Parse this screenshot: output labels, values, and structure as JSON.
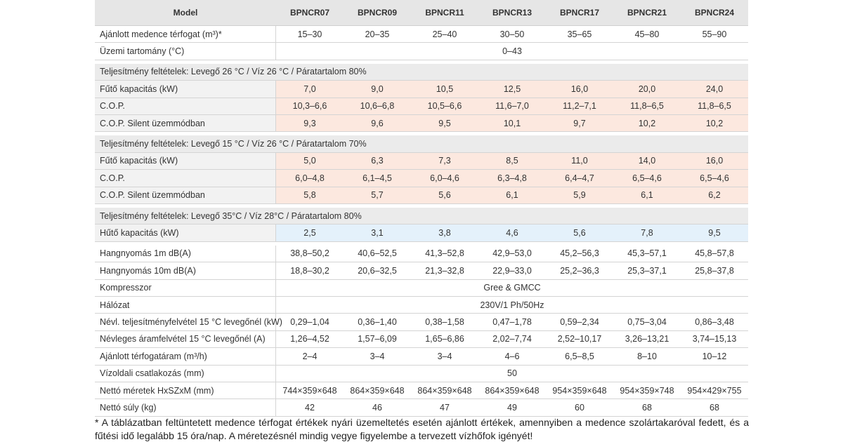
{
  "table": {
    "header": [
      "Model",
      "BPNCR07",
      "BPNCR09",
      "BPNCR11",
      "BPNCR13",
      "BPNCR17",
      "BPNCR21",
      "BPNCR24"
    ],
    "groups": [
      {
        "rows": [
          {
            "label": "Ajánlott medence térfogat (m³)*",
            "values": [
              "15–30",
              "20–35",
              "25–40",
              "30–50",
              "35–65",
              "45–80",
              "55–90"
            ]
          },
          {
            "label": "Üzemi tartomány (°C)",
            "value": "0–43"
          }
        ]
      },
      {
        "title": "Teljesítmény feltételek: Levegő 26 °C / Víz 26 °C / Páratartalom 80%",
        "color": "#fce8df",
        "rows": [
          {
            "label": "Fűtő kapacitás (kW)",
            "values": [
              "7,0",
              "9,0",
              "10,5",
              "12,5",
              "16,0",
              "20,0",
              "24,0"
            ]
          },
          {
            "label": "C.O.P.",
            "values": [
              "10,3–6,6",
              "10,6–6,8",
              "10,5–6,6",
              "11,6–7,0",
              "11,2–7,1",
              "11,8–6,5",
              "11,8–6,5"
            ]
          },
          {
            "label": "C.O.P. Silent üzemmódban",
            "values": [
              "9,3",
              "9,6",
              "9,5",
              "10,1",
              "9,7",
              "10,2",
              "10,2"
            ]
          }
        ]
      },
      {
        "title": "Teljesítmény feltételek: Levegő 15 °C / Víz 26 °C / Páratartalom 70%",
        "color": "#fce8df",
        "rows": [
          {
            "label": "Fűtő kapacitás (kW)",
            "values": [
              "5,0",
              "6,3",
              "7,3",
              "8,5",
              "11,0",
              "14,0",
              "16,0"
            ]
          },
          {
            "label": "C.O.P.",
            "values": [
              "6,0–4,8",
              "6,1–4,5",
              "6,0–4,6",
              "6,3–4,8",
              "6,4–4,7",
              "6,5–4,6",
              "6,5–4,6"
            ]
          },
          {
            "label": "C.O.P. Silent üzemmódban",
            "values": [
              "5,8",
              "5,7",
              "5,6",
              "6,1",
              "5,9",
              "6,1",
              "6,2"
            ]
          }
        ]
      },
      {
        "title": "Teljesítmény feltételek: Levegő 35°C / Víz 28°C / Páratartalom 80%",
        "color": "#e4f1fb",
        "rows": [
          {
            "label": "Hűtő kapacitás (kW)",
            "values": [
              "2,5",
              "3,1",
              "3,8",
              "4,6",
              "5,6",
              "7,8",
              "9,5"
            ]
          }
        ]
      },
      {
        "rows": [
          {
            "label": "Hangnyomás 1m dB(A)",
            "values": [
              "38,8–50,2",
              "40,6–52,5",
              "41,3–52,8",
              "42,9–53,0",
              "45,2–56,3",
              "45,3–57,1",
              "45,8–57,8"
            ]
          },
          {
            "label": "Hangnyomás 10m dB(A)",
            "values": [
              "18,8–30,2",
              "20,6–32,5",
              "21,3–32,8",
              "22,9–33,0",
              "25,2–36,3",
              "25,3–37,1",
              "25,8–37,8"
            ]
          },
          {
            "label": "Kompresszor",
            "value": "Gree & GMCC"
          },
          {
            "label": "Hálózat",
            "value": "230V/1 Ph/50Hz"
          },
          {
            "label": "Névl. teljesítményfelvétel 15 °C levegőnél (kW)",
            "values": [
              "0,29–1,04",
              "0,36–1,40",
              "0,38–1,58",
              "0,47–1,78",
              "0,59–2,34",
              "0,75–3,04",
              "0,86–3,48"
            ]
          },
          {
            "label": "Névleges áramfelvétel 15 °C levegőnél (A)",
            "values": [
              "1,26–4,52",
              "1,57–6,09",
              "1,65–6,86",
              "2,02–7,74",
              "2,52–10,17",
              "3,26–13,21",
              "3,74–15,13"
            ]
          },
          {
            "label": "Ajánlott térfogatáram (m³/h)",
            "values": [
              "2–4",
              "3–4",
              "3–4",
              "4–6",
              "6,5–8,5",
              "8–10",
              "10–12"
            ]
          },
          {
            "label": "Vízoldali csatlakozás (mm)",
            "value": "50"
          },
          {
            "label": "Nettó méretek HxSZxM (mm)",
            "values": [
              "744×359×648",
              "864×359×648",
              "864×359×648",
              "864×359×648",
              "954×359×648",
              "954×359×748",
              "954×429×755"
            ]
          },
          {
            "label": "Nettó súly (kg)",
            "values": [
              "42",
              "46",
              "47",
              "49",
              "60",
              "68",
              "68"
            ]
          }
        ]
      }
    ]
  },
  "footnote": "* A táblázatban feltüntetett medence térfogat értékek nyári üzemeltetés esetén ajánlott értékek, amennyiben a medence szolártakaróval fedett, és a fűtési idő legalább 15 óra/nap. A méretezésnél mindig vegye figyelembe a tervezett vízhőfok igényét!"
}
